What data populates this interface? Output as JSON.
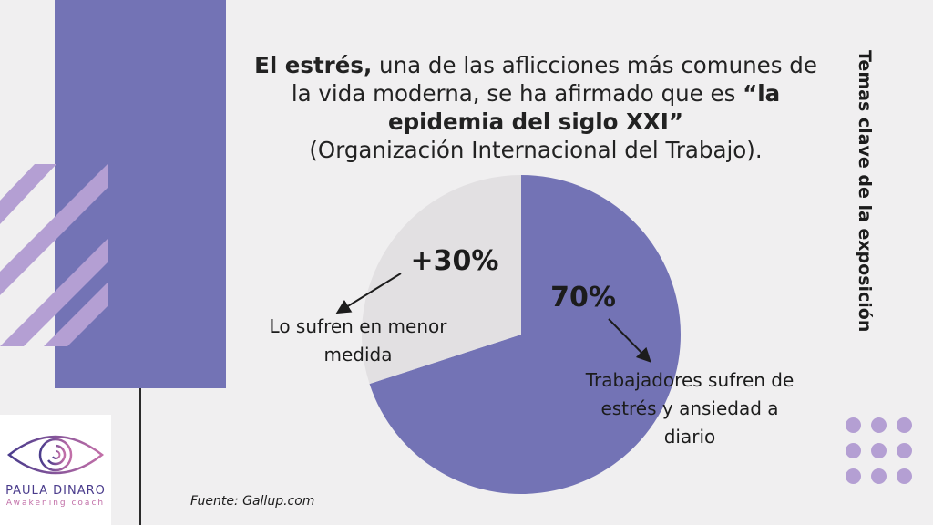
{
  "headline": {
    "part1_bold": "El estrés,",
    "part2": " una de las aflicciones más comunes de la vida moderna, se ha afirmado que es ",
    "part3_bold": "“la epidemia del siglo XXI”",
    "part4": "(Organización Internacional del Trabajo)."
  },
  "side_title": "Temas clave de la exposición",
  "source": "Fuente: Gallup.com",
  "logo": {
    "name": "PAULA DINARO",
    "tagline": "Awakening coach"
  },
  "colors": {
    "primary": "#7373b5",
    "secondary": "#e2e0e2",
    "accent": "#b49fd3",
    "background": "#f0eff0"
  },
  "chart_data": {
    "type": "pie",
    "slices": [
      {
        "label": "Trabajadores sufren de estrés y ansiedad a diario",
        "value": 70,
        "display": "70%",
        "color": "#7373b5"
      },
      {
        "label": "Lo sufren en menor medida",
        "value": 30,
        "display": "+30%",
        "color": "#e2e0e2"
      }
    ]
  }
}
